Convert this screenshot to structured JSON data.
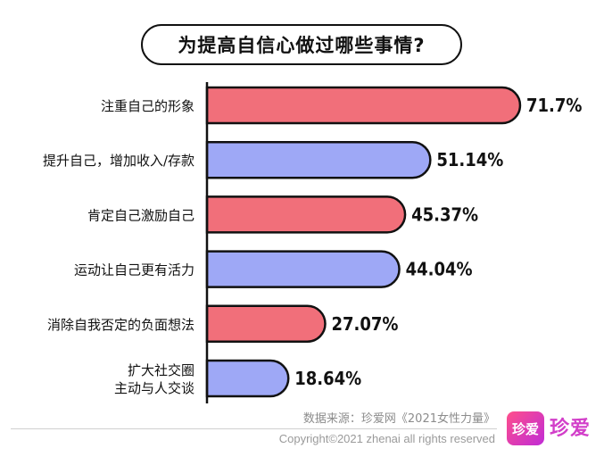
{
  "title": "为提高自信心做过哪些事情?",
  "chart_data": {
    "type": "bar",
    "orientation": "horizontal",
    "categories": [
      [
        "注重自己的形象"
      ],
      [
        "提升自己，增加收入/存款"
      ],
      [
        "肯定自己激励自己"
      ],
      [
        "运动让自己更有活力"
      ],
      [
        "消除自我否定的负面想法"
      ],
      [
        "扩大社交圈",
        "主动与人交谈"
      ]
    ],
    "values": [
      71.7,
      51.14,
      45.37,
      44.04,
      27.07,
      18.64
    ],
    "value_labels": [
      "71.7%",
      "51.14%",
      "45.37%",
      "44.04%",
      "27.07%",
      "18.64%"
    ],
    "unit": "%",
    "xlim": [
      0,
      76
    ],
    "grid": false,
    "legend": "none",
    "colors": [
      "#f16f7a",
      "#9ea8f6",
      "#f16f7a",
      "#9ea8f6",
      "#f16f7a",
      "#9ea8f6"
    ]
  },
  "footer": {
    "source": "数据来源：珍爱网《2021女性力量》",
    "copyright": "Copyright©2021  zhenai  all rights reserved"
  },
  "logo": {
    "icon_text": "珍爱",
    "text": "珍爱"
  },
  "theme": {
    "bar_outline": "#111111",
    "text": "#111111"
  }
}
